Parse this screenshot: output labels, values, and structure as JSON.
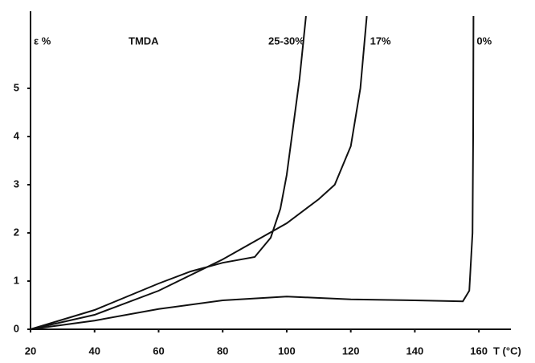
{
  "chart_data": {
    "type": "line",
    "annotation": "TMDA",
    "y_label": "ε %",
    "x_label": "T (°C)",
    "xlim": [
      20,
      170
    ],
    "ylim": [
      0,
      6.5
    ],
    "xticks": [
      20,
      40,
      60,
      80,
      100,
      120,
      140,
      160
    ],
    "yticks": [
      0,
      1,
      2,
      3,
      4,
      5
    ],
    "grid": false,
    "series": [
      {
        "name": "25-30%",
        "color": "#111111",
        "x": [
          20,
          40,
          60,
          70,
          80,
          90,
          95,
          98,
          100,
          102,
          104,
          106
        ],
        "values": [
          0,
          0.4,
          0.95,
          1.2,
          1.38,
          1.5,
          1.9,
          2.5,
          3.2,
          4.2,
          5.2,
          6.5
        ]
      },
      {
        "name": "17%",
        "color": "#111111",
        "x": [
          20,
          40,
          60,
          80,
          100,
          110,
          115,
          120,
          123,
          125
        ],
        "values": [
          0,
          0.3,
          0.8,
          1.45,
          2.2,
          2.7,
          3.0,
          3.8,
          5.0,
          6.5
        ]
      },
      {
        "name": "0%",
        "color": "#111111",
        "x": [
          20,
          40,
          60,
          80,
          100,
          120,
          140,
          155,
          157,
          158,
          158.2,
          158.3
        ],
        "values": [
          0,
          0.18,
          0.42,
          0.6,
          0.68,
          0.62,
          0.6,
          0.58,
          0.8,
          2,
          4,
          6.5
        ]
      }
    ]
  }
}
